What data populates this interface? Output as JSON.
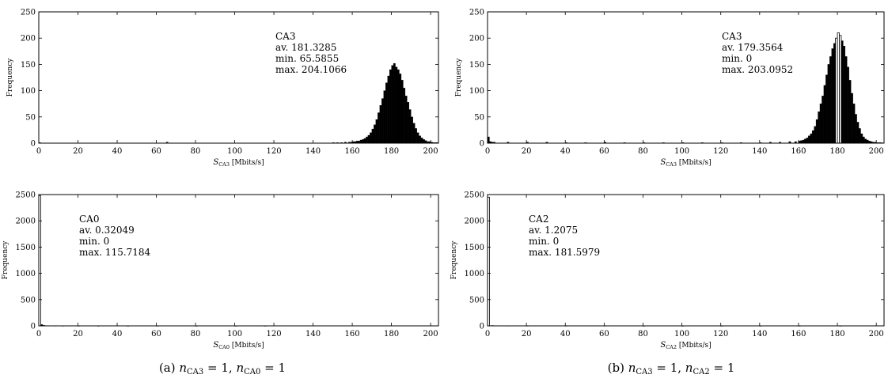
{
  "chart_data": [
    {
      "type": "bar",
      "panel": "a-top",
      "xlabel": "S_CA3 [Mbits/s]",
      "xlabel_sym": "S",
      "xlabel_sub": "CA3",
      "xlabel_unit": "[Mbits/s]",
      "ylabel": "Frequency",
      "xlim": [
        0,
        204
      ],
      "ylim": [
        0,
        250
      ],
      "xticks": [
        0,
        20,
        40,
        60,
        80,
        100,
        120,
        140,
        160,
        180,
        200
      ],
      "yticks": [
        0,
        50,
        100,
        150,
        200,
        250
      ],
      "annotation": [
        "CA3",
        "av.  181.3285",
        "min.  65.5855",
        "max.  204.1066"
      ],
      "bins": {
        "x": [
          0.5,
          65.5,
          150.5,
          152.5,
          154.5,
          156.5,
          158.5,
          159.5,
          160.5,
          161.5,
          162.5,
          163.5,
          164.5,
          165.5,
          166.5,
          167.5,
          168.5,
          169.5,
          170.5,
          171.5,
          172.5,
          173.5,
          174.5,
          175.5,
          176.5,
          177.5,
          178.5,
          179.5,
          180.5,
          181.5,
          182.5,
          183.5,
          184.5,
          185.5,
          186.5,
          187.5,
          188.5,
          189.5,
          190.5,
          191.5,
          192.5,
          193.5,
          194.5,
          195.5,
          196.5,
          197.5,
          198.5,
          199.5,
          200.5,
          201.5,
          202.5,
          203.5
        ],
        "values": [
          1,
          2,
          1,
          1,
          1,
          2,
          2,
          2,
          3,
          3,
          4,
          4,
          6,
          7,
          9,
          12,
          15,
          20,
          27,
          35,
          45,
          58,
          72,
          85,
          100,
          115,
          128,
          140,
          148,
          152,
          145,
          140,
          132,
          120,
          105,
          90,
          78,
          64,
          50,
          38,
          28,
          20,
          14,
          10,
          7,
          5,
          3,
          3,
          2,
          1,
          1,
          1
        ]
      }
    },
    {
      "type": "bar",
      "panel": "a-bottom",
      "xlabel": "S_CA0 [Mbits/s]",
      "xlabel_sym": "S",
      "xlabel_sub": "CA0",
      "xlabel_unit": "[Mbits/s]",
      "ylabel": "Frequency",
      "xlim": [
        0,
        204
      ],
      "ylim": [
        0,
        2500
      ],
      "xticks": [
        0,
        20,
        40,
        60,
        80,
        100,
        120,
        140,
        160,
        180,
        200
      ],
      "yticks": [
        0,
        500,
        1000,
        1500,
        2000,
        2500
      ],
      "annotation": [
        "CA0",
        "av.  0.32049",
        "min.  0",
        "max.  115.7184"
      ],
      "bins": {
        "x": [
          0.5,
          1.5,
          2.5,
          3.5,
          5.5,
          8.5,
          12.5,
          20.5,
          30.5,
          45.5,
          60.5,
          80.5,
          100.5,
          115.5
        ],
        "values": [
          2480,
          25,
          10,
          6,
          4,
          3,
          2,
          2,
          1,
          1,
          1,
          1,
          1,
          1
        ]
      }
    },
    {
      "type": "bar",
      "panel": "b-top",
      "xlabel": "S_CA3 [Mbits/s]",
      "xlabel_sym": "S",
      "xlabel_sub": "CA3",
      "xlabel_unit": "[Mbits/s]",
      "ylabel": "Frequency",
      "xlim": [
        0,
        204
      ],
      "ylim": [
        0,
        250
      ],
      "xticks": [
        0,
        20,
        40,
        60,
        80,
        100,
        120,
        140,
        160,
        180,
        200
      ],
      "yticks": [
        0,
        50,
        100,
        150,
        200,
        250
      ],
      "annotation": [
        "CA3",
        "av.  179.3564",
        "min.  0",
        "max.  203.0952"
      ],
      "bins": {
        "x": [
          0.5,
          1.5,
          2.5,
          3.5,
          10.5,
          20.5,
          30.5,
          40.5,
          50.5,
          60.5,
          70.5,
          80.5,
          90.5,
          100.5,
          110.5,
          120.5,
          130.5,
          140.5,
          145.5,
          150.5,
          155.5,
          158.5,
          160.5,
          161.5,
          162.5,
          163.5,
          164.5,
          165.5,
          166.5,
          167.5,
          168.5,
          169.5,
          170.5,
          171.5,
          172.5,
          173.5,
          174.5,
          175.5,
          176.5,
          177.5,
          178.5,
          179.5,
          180.5,
          181.5,
          182.5,
          183.5,
          184.5,
          185.5,
          186.5,
          187.5,
          188.5,
          189.5,
          190.5,
          191.5,
          192.5,
          193.5,
          194.5,
          195.5,
          196.5,
          197.5,
          198.5,
          199.5,
          200.5,
          201.5,
          202.5
        ],
        "values": [
          12,
          3,
          2,
          2,
          2,
          2,
          2,
          1,
          1,
          2,
          1,
          1,
          1,
          1,
          1,
          1,
          1,
          1,
          2,
          2,
          3,
          3,
          4,
          5,
          6,
          8,
          10,
          14,
          18,
          24,
          32,
          45,
          60,
          75,
          90,
          110,
          130,
          150,
          165,
          180,
          190,
          200,
          210,
          205,
          195,
          185,
          165,
          145,
          120,
          95,
          75,
          55,
          40,
          28,
          18,
          12,
          8,
          6,
          4,
          3,
          2,
          2,
          1,
          1,
          1
        ]
      }
    },
    {
      "type": "bar",
      "panel": "b-bottom",
      "xlabel": "S_CA2 [Mbits/s]",
      "xlabel_sym": "S",
      "xlabel_sub": "CA2",
      "xlabel_unit": "[Mbits/s]",
      "ylabel": "Frequency",
      "xlim": [
        0,
        204
      ],
      "ylim": [
        0,
        2500
      ],
      "xticks": [
        0,
        20,
        40,
        60,
        80,
        100,
        120,
        140,
        160,
        180,
        200
      ],
      "yticks": [
        0,
        500,
        1000,
        1500,
        2000,
        2500
      ],
      "annotation": [
        "CA2",
        "av.  1.2075",
        "min.  0",
        "max.  181.5979"
      ],
      "bins": {
        "x": [
          0.5,
          2.5,
          4.5,
          10.5,
          20.5,
          40.5,
          60.5,
          80.5,
          100.5,
          120.5,
          140.5,
          160.5,
          181.5
        ],
        "values": [
          2450,
          8,
          4,
          3,
          2,
          2,
          2,
          1,
          1,
          1,
          1,
          1,
          1
        ]
      }
    }
  ],
  "captions": [
    {
      "prefix": "(a)",
      "formula": "n_CA3 = 1, n_CA0 = 1",
      "var1": "n",
      "sub1": "CA3",
      "eq1": " = 1, ",
      "var2": "n",
      "sub2": "CA0",
      "eq2": " = 1"
    },
    {
      "prefix": "(b)",
      "formula": "n_CA3 = 1, n_CA2 = 1",
      "var1": "n",
      "sub1": "CA3",
      "eq1": " = 1, ",
      "var2": "n",
      "sub2": "CA2",
      "eq2": " = 1"
    }
  ]
}
